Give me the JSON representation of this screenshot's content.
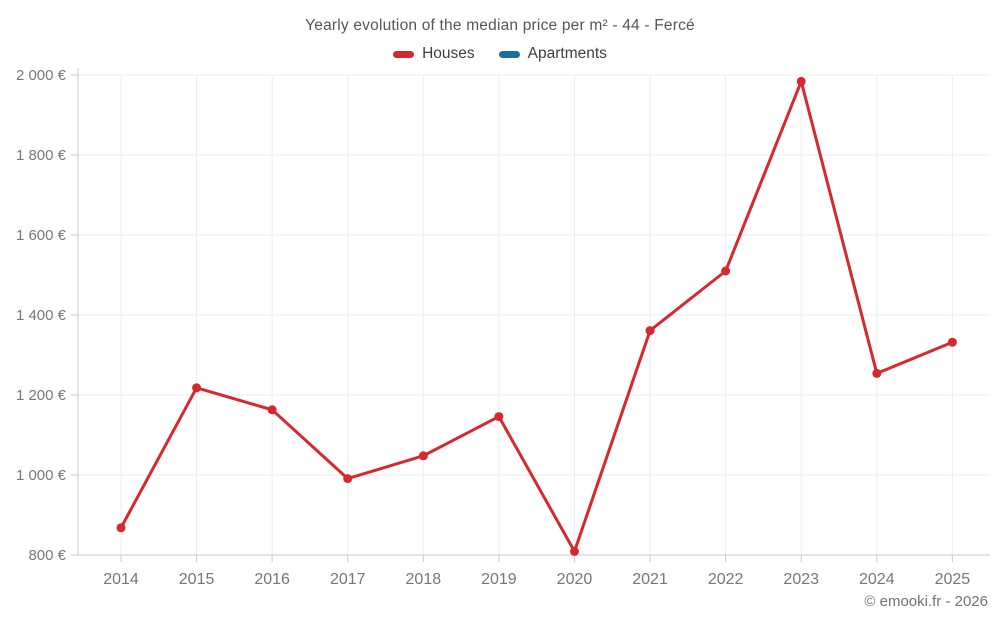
{
  "header": {
    "title": "Yearly evolution of the median price per m² - 44 - Fercé"
  },
  "footer": {
    "text": "© emooki.fr - 2026"
  },
  "colors": {
    "houses": "#d7282e",
    "apartments": "#1a6fa0",
    "grid": "#ededef",
    "axis": "#c9c9cd",
    "tick_label": "#77777b"
  },
  "chart_data": {
    "type": "line",
    "title": "Yearly evolution of the median price per m² - 44 - Fercé",
    "xlabel": "",
    "ylabel": "",
    "categories": [
      "2014",
      "2015",
      "2016",
      "2017",
      "2018",
      "2019",
      "2020",
      "2021",
      "2022",
      "2023",
      "2024",
      "2025"
    ],
    "series": [
      {
        "name": "Houses",
        "color": "#d7282e",
        "values": [
          868,
          1218,
          1163,
          991,
          1048,
          1146,
          809,
          1361,
          1510,
          1984,
          1254,
          1332
        ]
      },
      {
        "name": "Apartments",
        "color": "#1a6fa0",
        "values": []
      }
    ],
    "ylim": [
      800,
      2000
    ],
    "y_ticks": [
      800,
      1000,
      1200,
      1400,
      1600,
      1800,
      2000
    ],
    "y_tick_labels": [
      "800 €",
      "1 000 €",
      "1 200 €",
      "1 400 €",
      "1 600 €",
      "1 800 €",
      "2 000 €"
    ],
    "grid": true,
    "legend_position": "top",
    "point_markers": true
  }
}
